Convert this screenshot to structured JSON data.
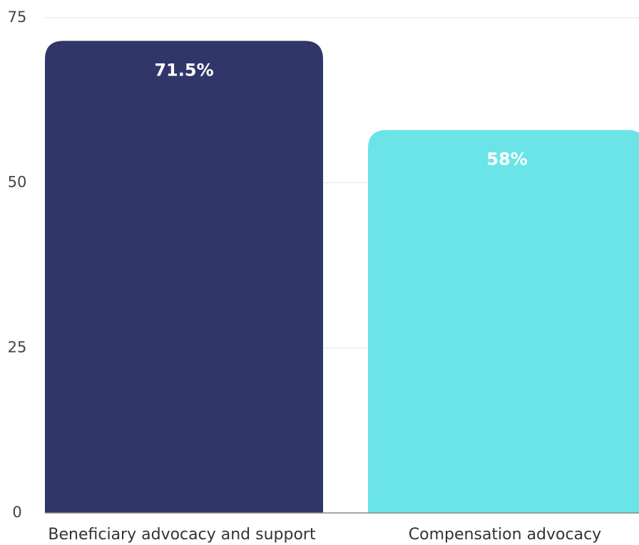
{
  "chart_data": {
    "type": "bar",
    "categories": [
      "Beneficiary advocacy and support",
      "Compensation advocacy"
    ],
    "values": [
      71.5,
      58
    ],
    "value_labels": [
      "71.5%",
      "58%"
    ],
    "colors": [
      "#30356a",
      "#6be4e7"
    ],
    "ylim": [
      0,
      75
    ],
    "yticks": [
      0,
      25,
      50,
      75
    ],
    "grid": true
  }
}
